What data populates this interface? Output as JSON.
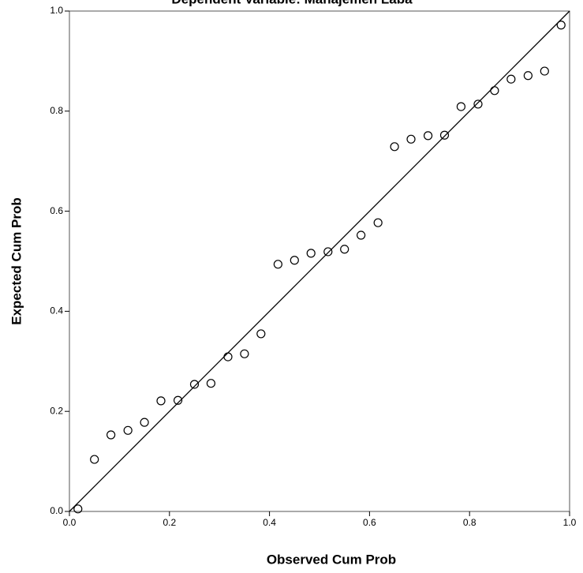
{
  "chart_data": {
    "type": "scatter",
    "title": "Dependent Variable: Manajemen Laba",
    "x_label": "Observed Cum Prob",
    "y_label": "Expected Cum Prob",
    "xlim": [
      0,
      1
    ],
    "ylim": [
      0,
      1
    ],
    "xticks": [
      {
        "value": 0,
        "label": "0.0"
      },
      0.2,
      0.4,
      0.6,
      0.8,
      {
        "value": 1,
        "label": "1.0"
      }
    ],
    "yticks": [
      {
        "value": 0,
        "label": "0.0"
      },
      0.2,
      0.4,
      0.6,
      0.8,
      {
        "value": 1,
        "label": "1.0"
      }
    ],
    "color": "#000000",
    "series": [
      {
        "x": [
          0.017,
          0.05,
          0.083,
          0.117,
          0.15,
          0.183,
          0.217,
          0.25,
          0.283,
          0.317,
          0.35,
          0.383,
          0.417,
          0.45,
          0.483,
          0.517,
          0.55,
          0.583,
          0.617,
          0.65,
          0.683,
          0.717,
          0.75,
          0.783,
          0.817,
          0.85,
          0.883,
          0.917,
          0.95,
          0.983
        ],
        "values": [
          0.005,
          0.104,
          0.153,
          0.162,
          0.178,
          0.221,
          0.222,
          0.254,
          0.256,
          0.309,
          0.315,
          0.355,
          0.494,
          0.502,
          0.516,
          0.519,
          0.524,
          0.552,
          0.577,
          0.729,
          0.744,
          0.751,
          0.752,
          0.809,
          0.814,
          0.841,
          0.864,
          0.871,
          0.88,
          0.972
        ]
      }
    ]
  }
}
